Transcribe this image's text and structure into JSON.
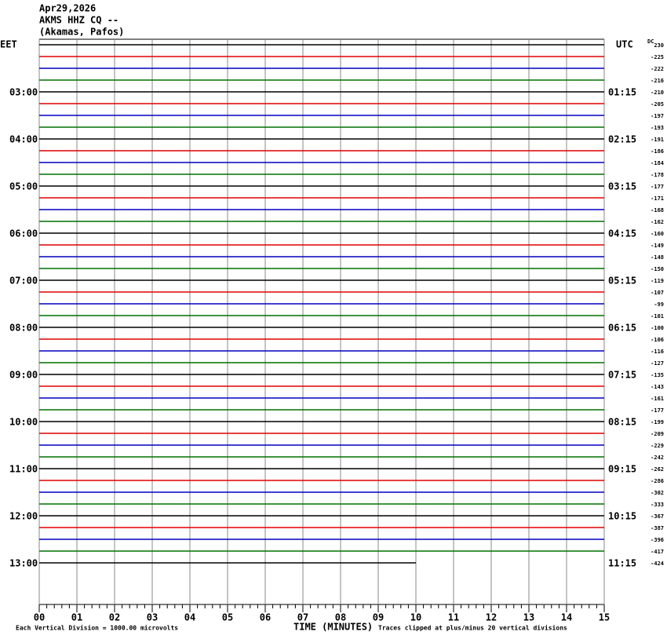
{
  "header": {
    "date": "Apr29,2026",
    "station": "AKMS HHZ CQ --",
    "location": "(Akamas, Pafos)"
  },
  "left_header": "EET",
  "right_header": "UTC",
  "dc_header": "DC",
  "local_times": [
    "03:00",
    "04:00",
    "05:00",
    "06:00",
    "07:00",
    "08:00",
    "09:00",
    "10:00",
    "11:00",
    "12:00",
    "13:00"
  ],
  "utc_times": [
    "01:15",
    "02:15",
    "03:15",
    "04:15",
    "05:15",
    "06:15",
    "07:15",
    "08:15",
    "09:15",
    "10:15",
    "11:15"
  ],
  "dc_values": [
    "230",
    "-225",
    "-222",
    "-216",
    "-210",
    "-205",
    "-197",
    "-193",
    "-191",
    "-186",
    "-184",
    "-178",
    "-177",
    "-171",
    "-168",
    "-162",
    "-160",
    "-149",
    "-148",
    "-150",
    "-119",
    "-107",
    "-99",
    "-101",
    "-100",
    "-106",
    "-116",
    "-127",
    "-135",
    "-143",
    "-161",
    "-177",
    "-199",
    "-209",
    "-229",
    "-242",
    "-262",
    "-286",
    "-302",
    "-333",
    "-367",
    "-387",
    "-396",
    "-417",
    "-424"
  ],
  "trace_colors": [
    "#000000",
    "#e00000",
    "#0000c0",
    "#007000"
  ],
  "x_ticks": [
    "00",
    "01",
    "02",
    "03",
    "04",
    "05",
    "06",
    "07",
    "08",
    "09",
    "10",
    "11",
    "12",
    "13",
    "14",
    "15"
  ],
  "x_label": "TIME (MINUTES)",
  "footer_left": "Each Vertical Division = 1000.00 microvolts",
  "footer_right": "Traces clipped at plus/minus 20 vertical divisions"
}
